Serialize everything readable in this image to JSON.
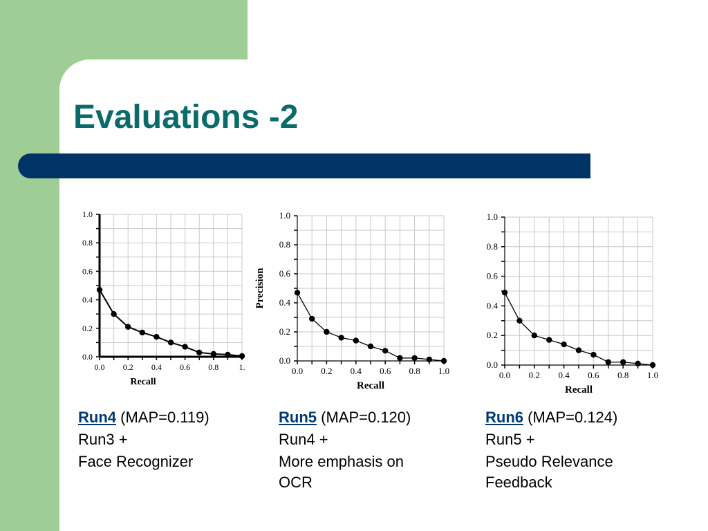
{
  "slide": {
    "title": "Evaluations -2",
    "colors": {
      "background": "#9fcd96",
      "title": "#0b6b6b",
      "bar": "#003366",
      "run_name": "#003a74"
    }
  },
  "captions": [
    {
      "run": "Run4",
      "map": "(MAP=0.119)",
      "lines": [
        "Run3 +",
        "Face Recognizer"
      ]
    },
    {
      "run": "Run5",
      "map": "(MAP=0.120)",
      "lines": [
        "Run4 +",
        "More emphasis on",
        "OCR"
      ]
    },
    {
      "run": "Run6",
      "map": "(MAP=0.124)",
      "lines": [
        "Run5 +",
        "Pseudo Relevance",
        "Feedback"
      ]
    }
  ],
  "chart_data": [
    {
      "type": "line",
      "xlabel": "Recall",
      "ylabel": "",
      "xlim": [
        0,
        1.0
      ],
      "ylim": [
        0,
        1.0
      ],
      "xticks": [
        "0.0",
        "0.2",
        "0.4",
        "0.6",
        "0.8",
        "1."
      ],
      "yticks": [
        "0.0",
        "0.2",
        "0.4",
        "0.6",
        "0.8",
        "1.0"
      ],
      "grid": true,
      "x": [
        0.0,
        0.1,
        0.2,
        0.3,
        0.4,
        0.5,
        0.6,
        0.7,
        0.8,
        0.9,
        1.0
      ],
      "y": [
        0.47,
        0.3,
        0.21,
        0.17,
        0.14,
        0.1,
        0.07,
        0.03,
        0.02,
        0.015,
        0.005
      ]
    },
    {
      "type": "line",
      "xlabel": "Recall",
      "ylabel": "Precision",
      "xlim": [
        0,
        1.0
      ],
      "ylim": [
        0,
        1.0
      ],
      "xticks": [
        "0.0",
        "0.2",
        "0.4",
        "0.6",
        "0.8",
        "1.0"
      ],
      "yticks": [
        "0.0",
        "0.2",
        "0.4",
        "0.6",
        "0.8",
        "1.0"
      ],
      "grid": true,
      "x": [
        0.0,
        0.1,
        0.2,
        0.3,
        0.4,
        0.5,
        0.6,
        0.7,
        0.8,
        0.9,
        1.0
      ],
      "y": [
        0.47,
        0.29,
        0.2,
        0.16,
        0.14,
        0.1,
        0.07,
        0.02,
        0.02,
        0.01,
        0.0
      ]
    },
    {
      "type": "line",
      "xlabel": "Recall",
      "ylabel": "",
      "xlim": [
        0,
        1.0
      ],
      "ylim": [
        0,
        1.0
      ],
      "xticks": [
        "0.0",
        "0.2",
        "0.4",
        "0.6",
        "0.8",
        "1.0"
      ],
      "yticks": [
        "0.0",
        "0.2",
        "0.4",
        "0.6",
        "0.8",
        "1.0"
      ],
      "grid": true,
      "x": [
        0.0,
        0.1,
        0.2,
        0.3,
        0.4,
        0.5,
        0.6,
        0.7,
        0.8,
        0.9,
        1.0
      ],
      "y": [
        0.49,
        0.3,
        0.2,
        0.17,
        0.14,
        0.1,
        0.07,
        0.02,
        0.02,
        0.01,
        0.0
      ]
    }
  ]
}
